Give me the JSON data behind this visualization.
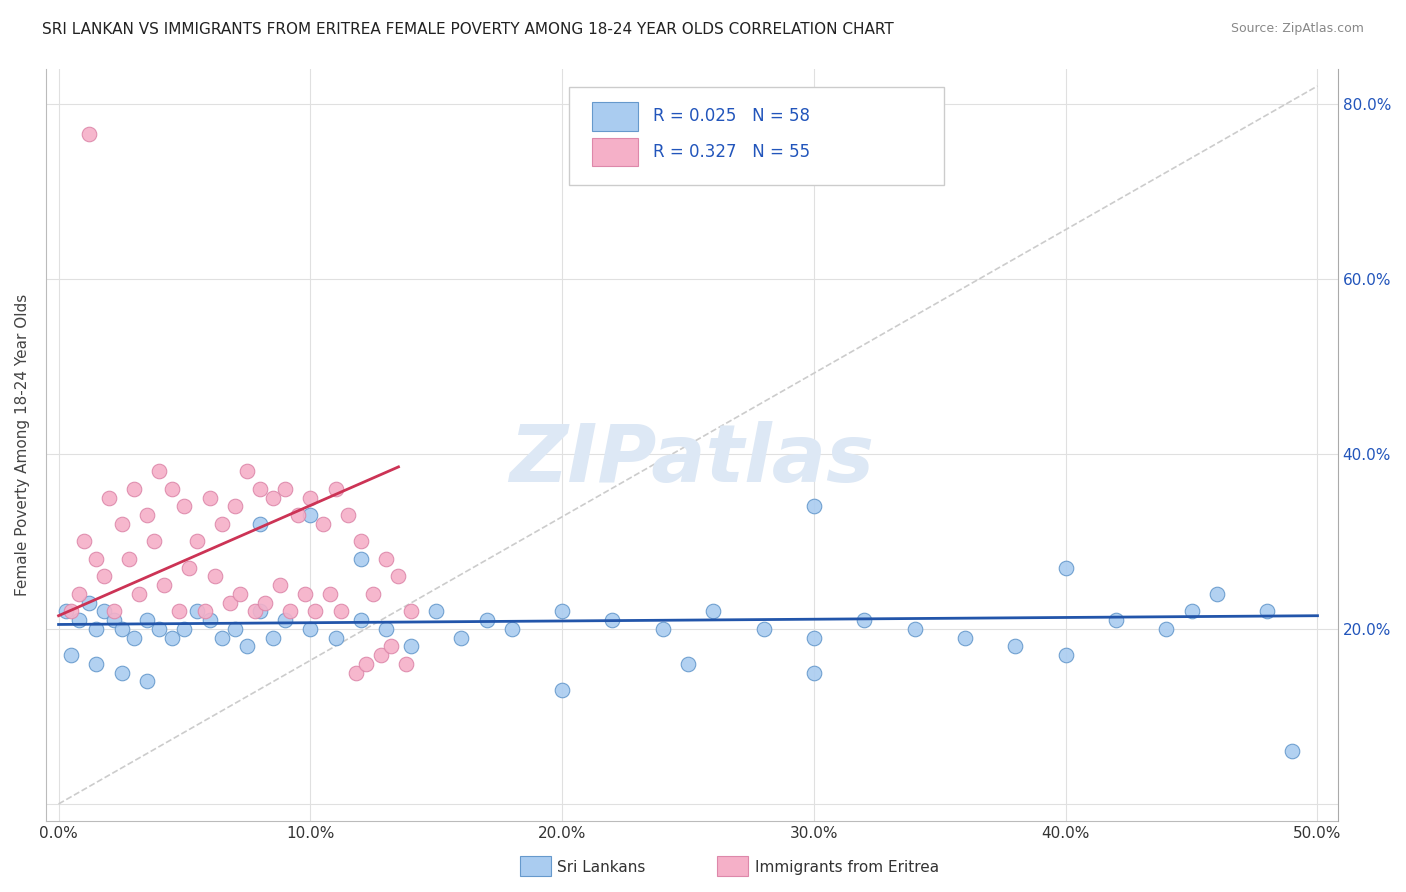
{
  "title": "SRI LANKAN VS IMMIGRANTS FROM ERITREA FEMALE POVERTY AMONG 18-24 YEAR OLDS CORRELATION CHART",
  "source": "Source: ZipAtlas.com",
  "ylabel": "Female Poverty Among 18-24 Year Olds",
  "xlim": [
    0.0,
    0.5
  ],
  "ylim": [
    0.0,
    0.84
  ],
  "xtick_vals": [
    0.0,
    0.1,
    0.2,
    0.3,
    0.4,
    0.5
  ],
  "ytick_vals": [
    0.0,
    0.2,
    0.4,
    0.6,
    0.8
  ],
  "xtick_labels": [
    "0.0%",
    "10.0%",
    "20.0%",
    "30.0%",
    "40.0%",
    "50.0%"
  ],
  "ytick_labels": [
    "",
    "20.0%",
    "40.0%",
    "60.0%",
    "80.0%"
  ],
  "sri_lankan_color": "#aaccf0",
  "sri_lankan_edge": "#6699cc",
  "eritrea_color": "#f5b0c8",
  "eritrea_edge": "#dd88aa",
  "trend_sri_color": "#2255aa",
  "trend_eritrea_color": "#cc3355",
  "watermark_color": "#dde8f5",
  "legend_text_color": "#2255bb",
  "legend_r_sri": "R = 0.025",
  "legend_n_sri": "N = 58",
  "legend_r_eri": "R = 0.327",
  "legend_n_eri": "N = 55",
  "sri_x": [
    0.003,
    0.008,
    0.012,
    0.015,
    0.018,
    0.022,
    0.025,
    0.03,
    0.035,
    0.04,
    0.045,
    0.05,
    0.055,
    0.06,
    0.065,
    0.07,
    0.075,
    0.08,
    0.085,
    0.09,
    0.1,
    0.11,
    0.12,
    0.13,
    0.14,
    0.15,
    0.16,
    0.17,
    0.18,
    0.2,
    0.22,
    0.24,
    0.26,
    0.28,
    0.3,
    0.3,
    0.32,
    0.34,
    0.36,
    0.38,
    0.4,
    0.42,
    0.44,
    0.46,
    0.48,
    0.49,
    0.005,
    0.015,
    0.025,
    0.035,
    0.08,
    0.1,
    0.12,
    0.2,
    0.25,
    0.3,
    0.4,
    0.45
  ],
  "sri_y": [
    0.22,
    0.21,
    0.23,
    0.2,
    0.22,
    0.21,
    0.2,
    0.19,
    0.21,
    0.2,
    0.19,
    0.2,
    0.22,
    0.21,
    0.19,
    0.2,
    0.18,
    0.22,
    0.19,
    0.21,
    0.2,
    0.19,
    0.21,
    0.2,
    0.18,
    0.22,
    0.19,
    0.21,
    0.2,
    0.22,
    0.21,
    0.2,
    0.22,
    0.2,
    0.19,
    0.34,
    0.21,
    0.2,
    0.19,
    0.18,
    0.27,
    0.21,
    0.2,
    0.24,
    0.22,
    0.06,
    0.17,
    0.16,
    0.15,
    0.14,
    0.32,
    0.33,
    0.28,
    0.13,
    0.16,
    0.15,
    0.17,
    0.22
  ],
  "eri_x": [
    0.012,
    0.005,
    0.008,
    0.015,
    0.01,
    0.02,
    0.018,
    0.025,
    0.022,
    0.03,
    0.028,
    0.035,
    0.032,
    0.04,
    0.038,
    0.045,
    0.042,
    0.05,
    0.048,
    0.055,
    0.052,
    0.06,
    0.058,
    0.065,
    0.062,
    0.07,
    0.068,
    0.075,
    0.072,
    0.08,
    0.078,
    0.085,
    0.082,
    0.09,
    0.088,
    0.095,
    0.092,
    0.1,
    0.098,
    0.105,
    0.102,
    0.11,
    0.108,
    0.115,
    0.112,
    0.12,
    0.118,
    0.125,
    0.122,
    0.13,
    0.128,
    0.135,
    0.132,
    0.14,
    0.138
  ],
  "eri_y": [
    0.765,
    0.22,
    0.24,
    0.28,
    0.3,
    0.35,
    0.26,
    0.32,
    0.22,
    0.36,
    0.28,
    0.33,
    0.24,
    0.38,
    0.3,
    0.36,
    0.25,
    0.34,
    0.22,
    0.3,
    0.27,
    0.35,
    0.22,
    0.32,
    0.26,
    0.34,
    0.23,
    0.38,
    0.24,
    0.36,
    0.22,
    0.35,
    0.23,
    0.36,
    0.25,
    0.33,
    0.22,
    0.35,
    0.24,
    0.32,
    0.22,
    0.36,
    0.24,
    0.33,
    0.22,
    0.3,
    0.15,
    0.24,
    0.16,
    0.28,
    0.17,
    0.26,
    0.18,
    0.22,
    0.16
  ]
}
